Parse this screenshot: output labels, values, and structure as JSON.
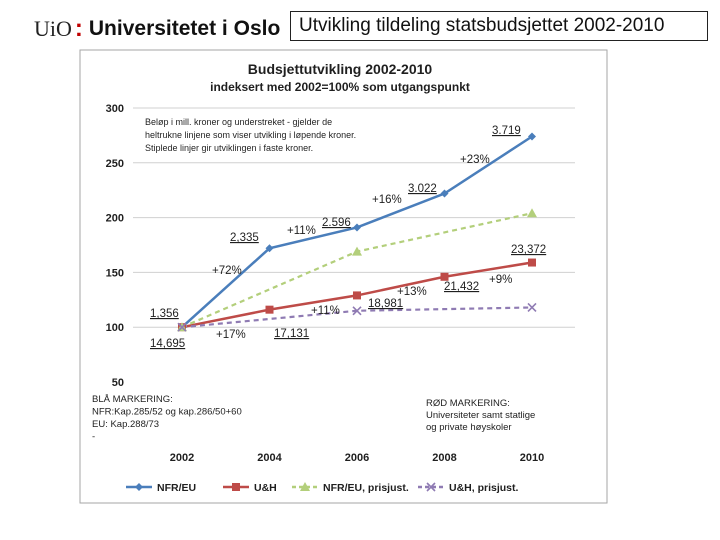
{
  "header": {
    "logo_uio": "UiO",
    "logo_colon": ":",
    "logo_name": "Universitetet i Oslo",
    "slide_title": "Utvikling tildeling statsbudsjettet 2002-2010"
  },
  "chart_data": {
    "type": "line",
    "title": "Budsjettutvikling 2002-2010",
    "subtitle": "indeksert med 2002=100% som utgangspunkt",
    "categories": [
      "2002",
      "2004",
      "2006",
      "2008",
      "2010"
    ],
    "ylim": [
      50,
      300
    ],
    "yticks": [
      50,
      100,
      150,
      200,
      250,
      300
    ],
    "grid": true,
    "legend_position": "bottom",
    "colors": {
      "nfr": "#4a7ebb",
      "uh": "#be4b48",
      "nfr_real": "#b3cf7b",
      "uh_real": "#8f7bb3",
      "panel_border": "#a6a6a6",
      "grid": "#d0d0d0"
    },
    "series": [
      {
        "name": "NFR/EU",
        "values": [
          100,
          172,
          191,
          222,
          274
        ],
        "style": "solid",
        "marker": "diamond",
        "color": "#4a7ebb"
      },
      {
        "name": "U&H",
        "values": [
          100,
          116,
          129,
          146,
          159
        ],
        "style": "solid",
        "marker": "square",
        "color": "#be4b48"
      },
      {
        "name": "NFR/EU,  prisjust.",
        "values": [
          100,
          null,
          169,
          null,
          204
        ],
        "style": "dashed",
        "marker": "triangle",
        "color": "#b3cf7b"
      },
      {
        "name": "U&H, prisjust.",
        "values": [
          100,
          null,
          115,
          null,
          118
        ],
        "style": "dashed",
        "marker": "x",
        "color": "#8f7bb3"
      }
    ],
    "annotations": {
      "note_lines": [
        "Beløp i mill. kroner og understreket - gjelder de",
        "heltrukne linjene som viser utvikling i løpende kroner.",
        "Stiplede linjer gir utviklingen i faste kroner."
      ],
      "value_labels": [
        {
          "text": "1,356",
          "underline": true
        },
        {
          "text": "2,335",
          "underline": true
        },
        {
          "text": "2.596",
          "underline": true
        },
        {
          "text": "3.022",
          "underline": true
        },
        {
          "text": "3.719",
          "underline": true
        },
        {
          "text": "14,695",
          "underline": true
        },
        {
          "text": "17,131",
          "underline": true
        },
        {
          "text": "18,981",
          "underline": true
        },
        {
          "text": "21,432",
          "underline": true
        },
        {
          "text": "23,372",
          "underline": true
        }
      ],
      "pct_labels": [
        "+72%",
        "+11%",
        "+16%",
        "+23%",
        "+17%",
        "+11%",
        "+13%",
        "+9%"
      ],
      "blue_block": [
        "BLÅ MARKERING:",
        "NFR:Kap.285/52 og kap.286/50+60",
        "EU: Kap.288/73",
        "-"
      ],
      "red_block": [
        "RØD MARKERING:",
        "Universiteter samt statlige",
        "og private høyskoler"
      ]
    }
  }
}
